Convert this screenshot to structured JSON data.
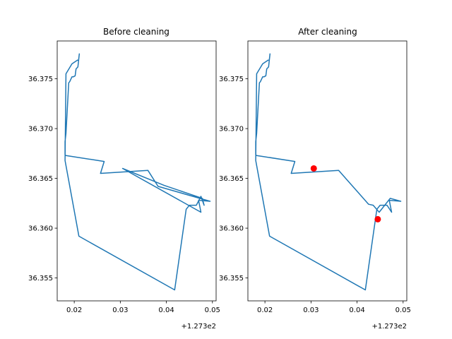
{
  "chart_data": [
    {
      "type": "line",
      "title": "Before cleaning",
      "xlabel": "",
      "ylabel": "",
      "x_offset_label": "+1.273e2",
      "xlim": [
        127.3163,
        127.3508
      ],
      "ylim": [
        36.3527,
        36.3788
      ],
      "x_ticks": [
        127.32,
        127.33,
        127.34,
        127.35
      ],
      "x_tick_labels": [
        "0.02",
        "0.03",
        "0.04",
        "0.05"
      ],
      "y_ticks": [
        36.355,
        36.36,
        36.365,
        36.37,
        36.375
      ],
      "y_tick_labels": [
        "36.355",
        "36.360",
        "36.365",
        "36.370",
        "36.375"
      ],
      "line_color": "#1f77b4",
      "series": [
        {
          "x": [
            127.3209,
            127.3211,
            127.3208,
            127.3204,
            127.3202,
            127.3198,
            127.3195,
            127.319,
            127.3188,
            127.3182,
            127.318,
            127.318,
            127.3181,
            127.3265,
            127.3257,
            127.336,
            127.3382,
            127.3495,
            127.347,
            127.3475,
            127.3305,
            127.3395,
            127.3478,
            127.3482,
            127.3475,
            127.3465,
            127.345,
            127.3443,
            127.3418,
            127.321,
            127.318,
            127.3182,
            127.3195,
            127.3208
          ],
          "y": [
            36.3767,
            36.3775,
            36.3762,
            36.376,
            36.3753,
            36.3752,
            36.3752,
            36.3747,
            36.3746,
            36.3695,
            36.3687,
            36.3674,
            36.3673,
            36.3667,
            36.3655,
            36.3658,
            36.3642,
            36.3627,
            36.3628,
            36.3616,
            36.366,
            36.3643,
            36.363,
            36.3623,
            36.3632,
            36.3623,
            36.3623,
            36.3619,
            36.3538,
            36.3592,
            36.3668,
            36.3755,
            36.3765,
            36.3769
          ]
        }
      ],
      "markers": []
    },
    {
      "type": "line",
      "title": "After cleaning",
      "xlabel": "",
      "ylabel": "",
      "x_offset_label": "+1.273e2",
      "xlim": [
        127.3163,
        127.3508
      ],
      "ylim": [
        36.3527,
        36.3788
      ],
      "x_ticks": [
        127.32,
        127.33,
        127.34,
        127.35
      ],
      "x_tick_labels": [
        "0.02",
        "0.03",
        "0.04",
        "0.05"
      ],
      "y_ticks": [
        36.355,
        36.36,
        36.365,
        36.37,
        36.375
      ],
      "y_tick_labels": [
        "36.355",
        "36.360",
        "36.365",
        "36.370",
        "36.375"
      ],
      "line_color": "#1f77b4",
      "series": [
        {
          "x": [
            127.3209,
            127.3211,
            127.3208,
            127.3204,
            127.3202,
            127.3198,
            127.3195,
            127.319,
            127.3188,
            127.3182,
            127.318,
            127.318,
            127.3181,
            127.3265,
            127.3257,
            127.336,
            127.3425,
            127.3435,
            127.3448,
            127.3472,
            127.3495,
            127.347,
            127.3475,
            127.3465,
            127.345,
            127.3443,
            127.3418,
            127.321,
            127.318,
            127.3182,
            127.3195,
            127.3208
          ],
          "y": [
            36.3767,
            36.3775,
            36.3762,
            36.376,
            36.3753,
            36.3752,
            36.3752,
            36.3747,
            36.3746,
            36.3695,
            36.3687,
            36.3674,
            36.3673,
            36.3667,
            36.3655,
            36.3658,
            36.3624,
            36.3623,
            36.3616,
            36.363,
            36.3627,
            36.3628,
            36.3616,
            36.3623,
            36.3623,
            36.3619,
            36.3538,
            36.3592,
            36.3668,
            36.3755,
            36.3765,
            36.3769
          ]
        }
      ],
      "markers": [
        {
          "x": 127.3306,
          "y": 36.366,
          "color": "#ff0000"
        },
        {
          "x": 127.3445,
          "y": 36.3609,
          "color": "#ff0000"
        }
      ]
    }
  ]
}
